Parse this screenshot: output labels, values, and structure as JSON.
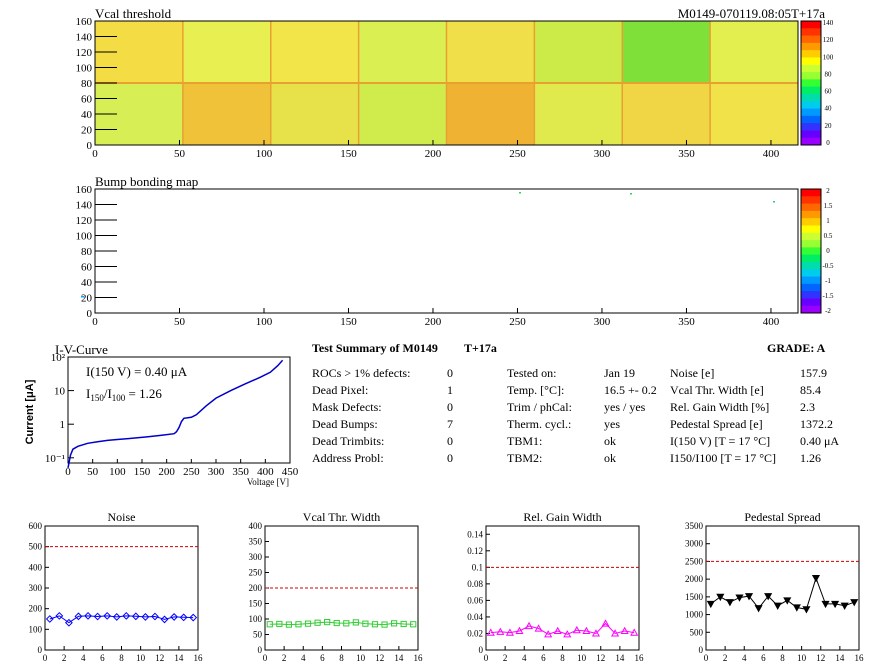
{
  "top_map": {
    "title": "Vcal threshold",
    "id_label": "M0149-070119.08:05T+17a",
    "x_ticks": [
      "0",
      "50",
      "100",
      "150",
      "200",
      "250",
      "300",
      "350",
      "400"
    ],
    "y_ticks": [
      "0",
      "20",
      "40",
      "60",
      "80",
      "100",
      "120",
      "140",
      "160"
    ],
    "z_ticks": [
      "140",
      "120",
      "100",
      "80",
      "60",
      "40",
      "20",
      "0"
    ]
  },
  "bump_map": {
    "title": "Bump bonding map",
    "x_ticks": [
      "0",
      "50",
      "100",
      "150",
      "200",
      "250",
      "300",
      "350",
      "400"
    ],
    "y_ticks": [
      "0",
      "20",
      "40",
      "60",
      "80",
      "100",
      "120",
      "140",
      "160"
    ],
    "z_ticks": [
      "2",
      "1.5",
      "1",
      "0.5",
      "0",
      "-0.5",
      "-1",
      "-1.5",
      "-2"
    ]
  },
  "iv_curve": {
    "title": "I-V-Curve",
    "line1": "I(150 V) = 0.40 μA",
    "line2_a": "I",
    "line2_sub1": "150",
    "line2_b": "/I",
    "line2_sub2": "100",
    "line2_c": " =  1.26",
    "ylabel": "Current [μA]",
    "xlabel": "Voltage [V]",
    "x_ticks": [
      "0",
      "50",
      "100",
      "150",
      "200",
      "250",
      "300",
      "350",
      "400",
      "450"
    ],
    "y_ticks": [
      "10⁻¹",
      "1",
      "10",
      "10²"
    ]
  },
  "summary": {
    "title": "Test Summary of M0149",
    "tag": "T+17a",
    "grade": "GRADE:  A",
    "col1": [
      {
        "label": "ROCs > 1% defects:",
        "value": "0"
      },
      {
        "label": "Dead Pixel:",
        "value": "1"
      },
      {
        "label": "Mask Defects:",
        "value": "0"
      },
      {
        "label": "Dead Bumps:",
        "value": "7"
      },
      {
        "label": "Dead Trimbits:",
        "value": "0"
      },
      {
        "label": "Address Probl:",
        "value": "0"
      }
    ],
    "col2": [
      {
        "label": "Tested on:",
        "value": "Jan 19"
      },
      {
        "label": "Temp. [°C]:",
        "value": "16.5 +- 0.2"
      },
      {
        "label": "Trim / phCal:",
        "value": "yes / yes"
      },
      {
        "label": "Therm. cycl.:",
        "value": "yes"
      },
      {
        "label": "TBM1:",
        "value": "ok"
      },
      {
        "label": "TBM2:",
        "value": "ok"
      }
    ],
    "col3": [
      {
        "label": "Noise [e]",
        "value": "157.9"
      },
      {
        "label": "Vcal Thr. Width [e]",
        "value": "85.4"
      },
      {
        "label": "Rel. Gain Width [%]",
        "value": "2.3"
      },
      {
        "label": "Pedestal Spread [e]",
        "value": "1372.2"
      },
      {
        "label": "I(150 V) [T = 17 °C]",
        "value": "0.40 μA"
      },
      {
        "label": "I150/I100  [T = 17 °C]",
        "value": "1.26"
      }
    ]
  },
  "chart_data": [
    {
      "type": "line",
      "title": "Noise",
      "x": [
        0,
        1,
        2,
        3,
        4,
        5,
        6,
        7,
        8,
        9,
        10,
        11,
        12,
        13,
        14,
        15
      ],
      "values": [
        150,
        165,
        132,
        163,
        165,
        162,
        165,
        160,
        165,
        163,
        160,
        162,
        148,
        160,
        158,
        157
      ],
      "threshold": 500,
      "ylim": [
        0,
        600
      ],
      "xlim": [
        0,
        16
      ],
      "y_ticks": [
        "0",
        "100",
        "200",
        "300",
        "400",
        "500",
        "600"
      ],
      "x_ticks": [
        "0",
        "2",
        "4",
        "6",
        "8",
        "10",
        "12",
        "14",
        "16"
      ],
      "marker": "diamond",
      "color": "#0000ff"
    },
    {
      "type": "line",
      "title": "Vcal Thr. Width",
      "x": [
        0,
        1,
        2,
        3,
        4,
        5,
        6,
        7,
        8,
        9,
        10,
        11,
        12,
        13,
        14,
        15
      ],
      "values": [
        83,
        84,
        82,
        83,
        85,
        88,
        90,
        87,
        86,
        89,
        85,
        83,
        82,
        86,
        84,
        83
      ],
      "threshold": 200,
      "ylim": [
        0,
        400
      ],
      "xlim": [
        0,
        16
      ],
      "y_ticks": [
        "0",
        "50",
        "100",
        "150",
        "200",
        "250",
        "300",
        "350",
        "400"
      ],
      "x_ticks": [
        "0",
        "2",
        "4",
        "6",
        "8",
        "10",
        "12",
        "14",
        "16"
      ],
      "marker": "square",
      "color": "#33cc33"
    },
    {
      "type": "line",
      "title": "Rel. Gain Width",
      "x": [
        0,
        1,
        2,
        3,
        4,
        5,
        6,
        7,
        8,
        9,
        10,
        11,
        12,
        13,
        14,
        15
      ],
      "values": [
        0.021,
        0.022,
        0.021,
        0.023,
        0.029,
        0.026,
        0.019,
        0.023,
        0.019,
        0.024,
        0.023,
        0.02,
        0.032,
        0.02,
        0.023,
        0.021
      ],
      "threshold": 0.1,
      "ylim": [
        0,
        0.15
      ],
      "xlim": [
        0,
        16
      ],
      "y_ticks": [
        "0",
        "0.02",
        "0.04",
        "0.06",
        "0.08",
        "0.1",
        "0.12",
        "0.14"
      ],
      "x_ticks": [
        "0",
        "2",
        "4",
        "6",
        "8",
        "10",
        "12",
        "14",
        "16"
      ],
      "marker": "triangle",
      "color": "#ff00ff"
    },
    {
      "type": "line",
      "title": "Pedestal Spread",
      "x": [
        0,
        1,
        2,
        3,
        4,
        5,
        6,
        7,
        8,
        9,
        10,
        11,
        12,
        13,
        14,
        15
      ],
      "values": [
        1300,
        1500,
        1350,
        1480,
        1520,
        1180,
        1520,
        1250,
        1400,
        1200,
        1150,
        2030,
        1300,
        1300,
        1250,
        1350
      ],
      "threshold": 2500,
      "ylim": [
        0,
        3500
      ],
      "xlim": [
        0,
        16
      ],
      "y_ticks": [
        "0",
        "500",
        "1000",
        "1500",
        "2000",
        "2500",
        "3000",
        "3500"
      ],
      "x_ticks": [
        "0",
        "2",
        "4",
        "6",
        "8",
        "10",
        "12",
        "14",
        "16"
      ],
      "marker": "triangle-down",
      "color": "#000000"
    },
    {
      "type": "line",
      "title": "I-V-Curve",
      "x": [
        0,
        5,
        10,
        20,
        40,
        60,
        80,
        100,
        130,
        160,
        190,
        215,
        220,
        225,
        230,
        235,
        250,
        260,
        280,
        300,
        330,
        360,
        390,
        410,
        425,
        435
      ],
      "values": [
        0.05,
        0.12,
        0.18,
        0.22,
        0.27,
        0.3,
        0.33,
        0.35,
        0.38,
        0.42,
        0.47,
        0.52,
        0.6,
        0.8,
        1.2,
        1.5,
        1.6,
        1.9,
        3.5,
        6,
        10,
        16,
        25,
        35,
        55,
        80
      ],
      "xlim": [
        0,
        450
      ],
      "ylim": [
        0.07,
        100
      ],
      "log_y": true,
      "color": "#0000cc"
    }
  ]
}
